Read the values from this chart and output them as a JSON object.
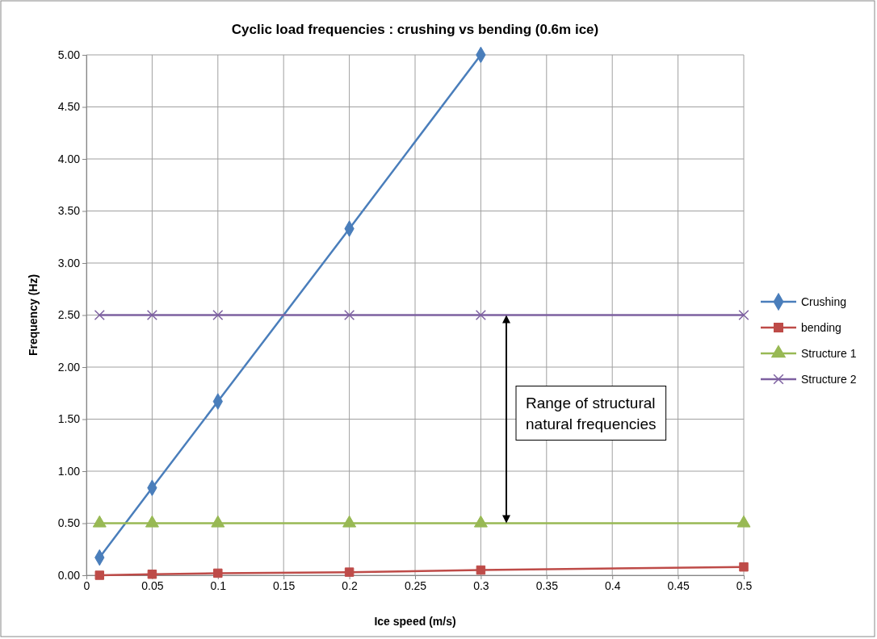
{
  "chart_data": {
    "type": "line",
    "title": "Cyclic load frequencies : crushing vs bending (0.6m ice)",
    "xlabel": "Ice speed (m/s)",
    "ylabel": "Frequency (Hz)",
    "xlim": [
      0,
      0.5
    ],
    "xticks": [
      0,
      0.05,
      0.1,
      0.15,
      0.2,
      0.25,
      0.3,
      0.35,
      0.4,
      0.45,
      0.5
    ],
    "ylim": [
      0,
      5
    ],
    "yticks": [
      {
        "value": 0,
        "label": "0.00"
      },
      {
        "value": 0.5,
        "label": "0.50"
      },
      {
        "value": 1,
        "label": "1.00"
      },
      {
        "value": 1.5,
        "label": "1.50"
      },
      {
        "value": 2,
        "label": "2.00"
      },
      {
        "value": 2.5,
        "label": "2.50"
      },
      {
        "value": 3,
        "label": "3.00"
      },
      {
        "value": 3.5,
        "label": "3.50"
      },
      {
        "value": 4,
        "label": "4.00"
      },
      {
        "value": 4.5,
        "label": "4.50"
      },
      {
        "value": 5,
        "label": "5.00"
      }
    ],
    "grid": true,
    "legend": "right",
    "line_style": "solid",
    "series": [
      {
        "name": "Crushing",
        "color": "#4a7ebb",
        "marker": "diamond",
        "x": [
          0.01,
          0.05,
          0.1,
          0.2,
          0.3
        ],
        "values": [
          0.17,
          0.84,
          1.67,
          3.33,
          5
        ]
      },
      {
        "name": "bending",
        "color": "#be4b48",
        "marker": "square",
        "x": [
          0.01,
          0.05,
          0.1,
          0.2,
          0.3,
          0.5
        ],
        "values": [
          0,
          0.01,
          0.02,
          0.03,
          0.05,
          0.08
        ]
      },
      {
        "name": "Structure 1",
        "color": "#98b954",
        "marker": "triangle",
        "x": [
          0.01,
          0.05,
          0.1,
          0.2,
          0.3,
          0.5
        ],
        "values": [
          0.5,
          0.5,
          0.5,
          0.5,
          0.5,
          0.5
        ]
      },
      {
        "name": "Structure 2",
        "color": "#7d60a0",
        "marker": "cross",
        "x": [
          0.01,
          0.05,
          0.1,
          0.2,
          0.3,
          0.5
        ],
        "values": [
          2.5,
          2.5,
          2.5,
          2.5,
          2.5,
          2.5
        ]
      }
    ],
    "annotations": [
      "Range of structural natural frequencies"
    ]
  }
}
